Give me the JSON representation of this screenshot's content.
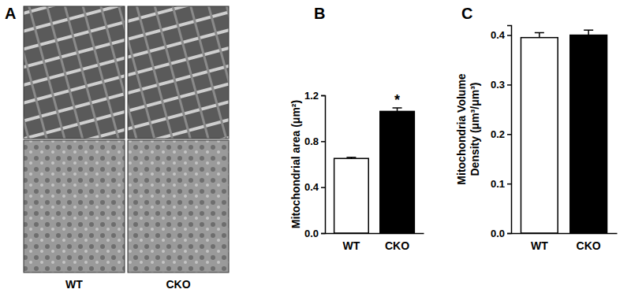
{
  "figure": {
    "panel_labels": [
      "A",
      "B",
      "C"
    ],
    "image_labels": [
      "WT",
      "CKO"
    ]
  },
  "chart_data": [
    {
      "type": "bar",
      "ylabel": "Mitochondrial area (μm²)",
      "categories": [
        "WT",
        "CKO"
      ],
      "values": [
        0.65,
        1.06
      ],
      "errors": [
        0.01,
        0.03
      ],
      "colors": [
        "#ffffff",
        "#000000"
      ],
      "ylim": [
        0,
        1.2
      ],
      "yticks": [
        {
          "value": 0,
          "label": "0.0"
        },
        0.4,
        0.8,
        1.2
      ],
      "annotations": [
        {
          "text": "*",
          "x": "CKO"
        }
      ]
    },
    {
      "type": "bar",
      "ylabel": [
        "Mitochondria Volume",
        "Density (μm³/μm³)"
      ],
      "categories": [
        "WT",
        "CKO"
      ],
      "values": [
        0.395,
        0.4
      ],
      "errors": [
        0.01,
        0.01
      ],
      "colors": [
        "#ffffff",
        "#000000"
      ],
      "ylim": [
        0,
        0.42
      ],
      "yticks": [
        {
          "value": 0,
          "label": "0.0"
        },
        0.1,
        0.2,
        0.3,
        0.4
      ]
    }
  ]
}
